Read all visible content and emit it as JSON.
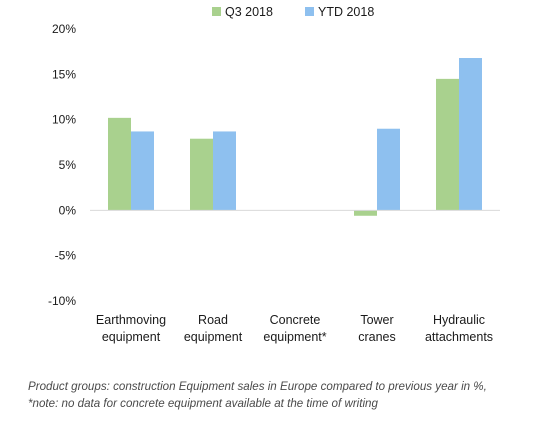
{
  "chart_data": {
    "type": "bar",
    "categories": [
      [
        "Earthmoving",
        "equipment"
      ],
      [
        "Road",
        "equipment"
      ],
      [
        "Concrete",
        "equipment*"
      ],
      [
        "Tower",
        "cranes"
      ],
      [
        "Hydraulic",
        "attachments"
      ]
    ],
    "series": [
      {
        "name": "Q3 2018",
        "color": "#a9d18e",
        "values": [
          10.2,
          7.9,
          null,
          -0.6,
          14.5
        ]
      },
      {
        "name": "YTD 2018",
        "color": "#8ec0ef",
        "values": [
          8.7,
          8.7,
          null,
          9.0,
          16.8
        ]
      }
    ],
    "y_ticks": [
      "20%",
      "15%",
      "10%",
      "5%",
      "0%",
      "-5%",
      "-10%"
    ],
    "ylim": [
      -10,
      20
    ],
    "y_step": 5,
    "grid": false,
    "legend_position": "top"
  },
  "caption": {
    "line1": "Product groups: construction Equipment sales in Europe compared to previous year in %,",
    "line2": "*note: no data for concrete equipment available at the time of writing"
  }
}
